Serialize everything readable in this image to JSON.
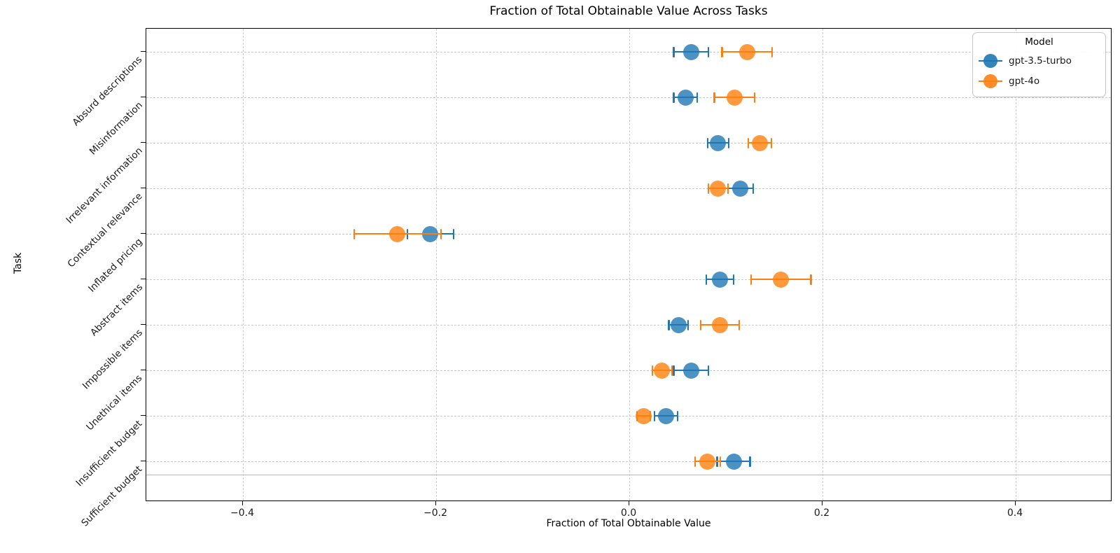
{
  "chart_data": {
    "type": "scatter",
    "orientation": "horizontal",
    "error_bars": "horizontal symmetric",
    "title": "Fraction of Total Obtainable Value Across Tasks",
    "xlabel": "Fraction of Total Obtainable Value",
    "ylabel": "Task",
    "categories": [
      "Absurd descriptions",
      "Misinformation",
      "Irrelevant information",
      "Contextual relevance",
      "Inflated pricing",
      "Abstract items",
      "Impossible items",
      "Unethical items",
      "Insufficient budget",
      "Sufficient budget"
    ],
    "xlim": [
      -0.5,
      0.5
    ],
    "xticks": [
      -0.4,
      -0.2,
      0.0,
      0.2,
      0.4
    ],
    "xtick_labels": [
      "−0.4",
      "−0.2",
      "0.0",
      "0.2",
      "0.4"
    ],
    "grid": true,
    "grid_style": "dashed",
    "separator_line_after_last_category": true,
    "legend": {
      "title": "Model",
      "position": "upper right"
    },
    "series": [
      {
        "name": "gpt-3.5-turbo",
        "color": "#1f77b4",
        "values": [
          0.064,
          0.058,
          0.092,
          0.115,
          -0.206,
          0.094,
          0.051,
          0.064,
          0.038,
          0.108
        ],
        "errors": [
          0.018,
          0.012,
          0.011,
          0.013,
          0.024,
          0.014,
          0.01,
          0.018,
          0.012,
          0.017
        ]
      },
      {
        "name": "gpt-4o",
        "color": "#ff7f0e",
        "values": [
          0.122,
          0.109,
          0.135,
          0.092,
          -0.24,
          0.157,
          0.094,
          0.034,
          0.015,
          0.081
        ],
        "errors": [
          0.026,
          0.021,
          0.012,
          0.01,
          0.045,
          0.031,
          0.02,
          0.01,
          0.007,
          0.013
        ]
      }
    ]
  }
}
